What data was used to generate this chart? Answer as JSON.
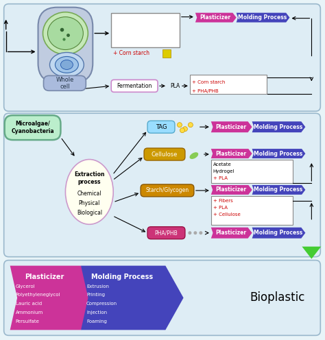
{
  "bg_color": "#e8f4f8",
  "panel_bg": "#deedf5",
  "panel_edge": "#9ab8cc",
  "plasticizer_color": "#cc3399",
  "molding_color": "#4444bb",
  "tag_color": "#99ddff",
  "tag_edge": "#55aacc",
  "cellulose_color": "#cc9900",
  "cellulose_edge": "#996600",
  "starch_color": "#cc8800",
  "starch_edge": "#885500",
  "pha_color": "#cc3377",
  "pha_edge": "#991144",
  "extraction_fill": "#fffff0",
  "extraction_edge": "#cc99cc",
  "whole_cell_outer": "#c0cce0",
  "whole_cell_inner_outer": "#d0e8cc",
  "cell_green_dark": "#88cc66",
  "cell_green_light": "#cceeaa",
  "cell_blue_outer": "#bbd0ee",
  "cell_blue_inner": "#88aace",
  "whole_cell_label_fill": "#aabbdd",
  "whole_cell_label_edge": "#7788aa",
  "microalgae_fill": "#bbeecc",
  "microalgae_edge": "#66aa88",
  "fermentation_fill": "#ffffff",
  "fermentation_edge": "#cc88cc",
  "box_fill": "#ffffff",
  "box_edge": "#888888",
  "plasticizer_items": [
    "Glycerol",
    "Polyethyleneglycol",
    "Lauric acid",
    "Ammonium",
    "Persulfate"
  ],
  "molding_items": [
    "Extrusion",
    "Printing",
    "Compression",
    "Injection",
    "Foaming"
  ],
  "bot_plas_color": "#cc3399",
  "bot_mol_color": "#4444bb"
}
